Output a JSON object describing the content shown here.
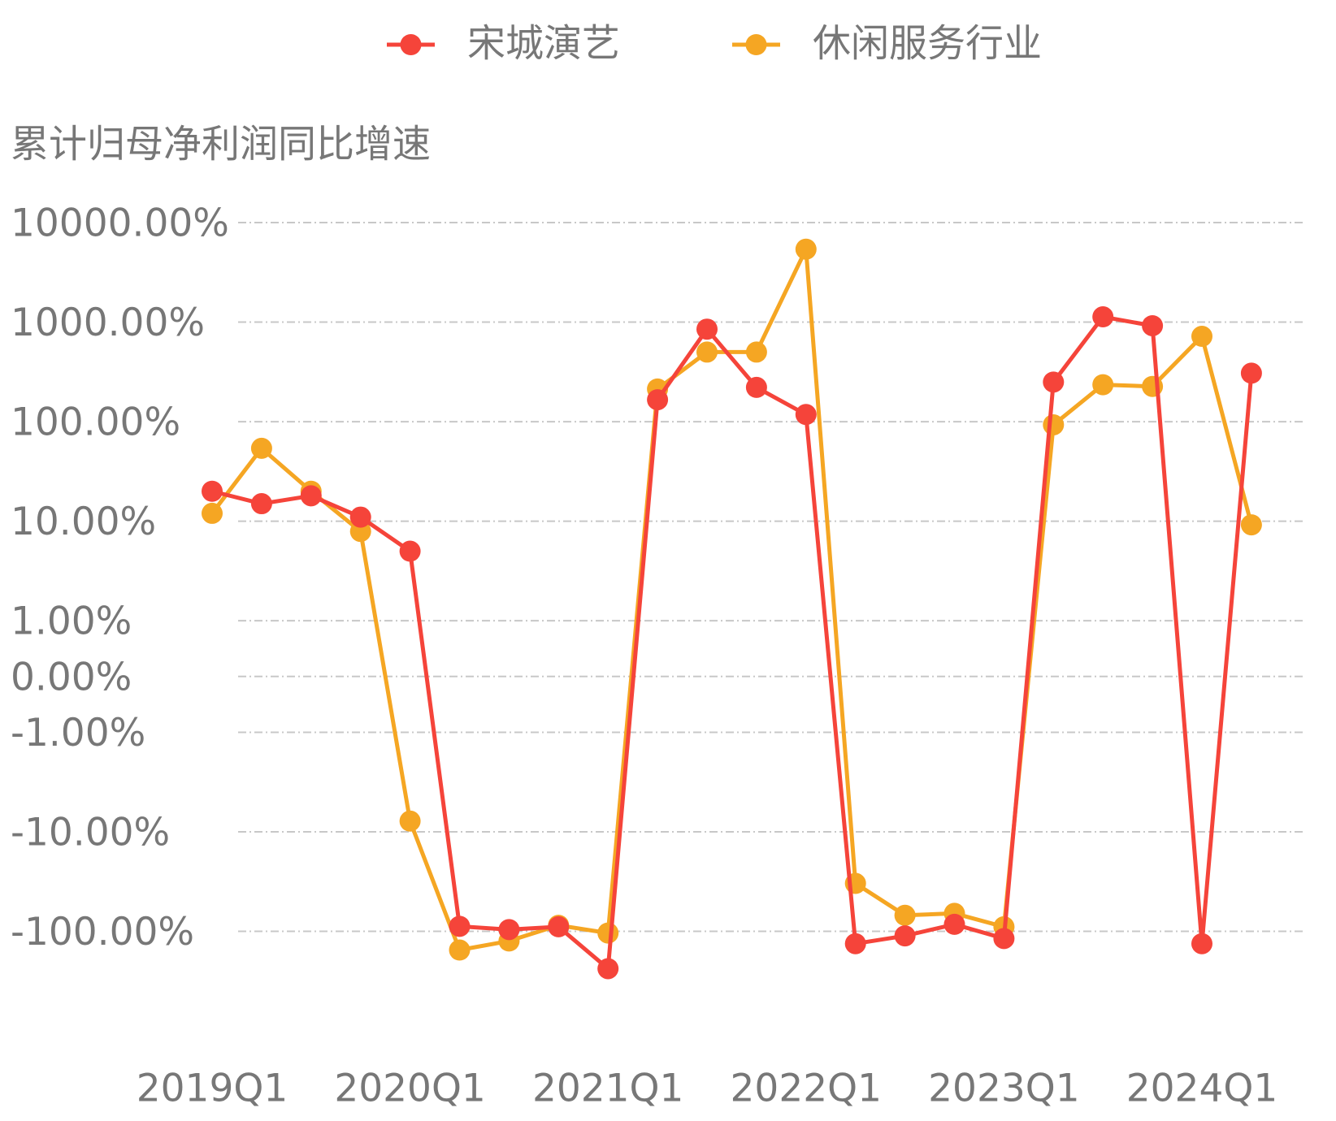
{
  "chart_data": {
    "type": "line",
    "y_axis_label": "累计归母净利润同比增速",
    "yscale": "symlog",
    "categories": [
      "2019Q1",
      null,
      null,
      null,
      "2020Q1",
      null,
      null,
      null,
      "2021Q1",
      null,
      null,
      null,
      "2022Q1",
      null,
      null,
      null,
      "2023Q1",
      null,
      null,
      null,
      "2024Q1",
      null
    ],
    "series": [
      {
        "name": "宋城演艺",
        "color": "#f5443a",
        "values": [
          20,
          15,
          18,
          11,
          5.0,
          -89,
          -96,
          -90,
          -237,
          166,
          850,
          221,
          118,
          -133,
          -111,
          -85,
          -118,
          250,
          1130,
          920,
          -133,
          307
        ]
      },
      {
        "name": "休闲服务行业",
        "color": "#f5a623",
        "values": [
          12,
          54,
          20,
          7.9,
          -7.8,
          -154,
          -125,
          -87,
          -104,
          213,
          500,
          500,
          5400,
          -33,
          -69,
          -66,
          -90,
          93,
          235,
          226,
          720,
          9.2
        ]
      }
    ],
    "ylim": [
      -300,
      10000
    ],
    "yticks": [
      {
        "value": 10000,
        "label": "10000.00%"
      },
      {
        "value": 1000,
        "label": "1000.00%"
      },
      {
        "value": 100,
        "label": "100.00%"
      },
      {
        "value": 10,
        "label": "10.00%"
      },
      {
        "value": 1,
        "label": "1.00%"
      },
      {
        "value": 0,
        "label": "0.00%"
      },
      {
        "value": -1,
        "label": "-1.00%"
      },
      {
        "value": -10,
        "label": "-10.00%"
      },
      {
        "value": -100,
        "label": "-100.00%"
      }
    ],
    "grid": true,
    "legend": "top"
  }
}
